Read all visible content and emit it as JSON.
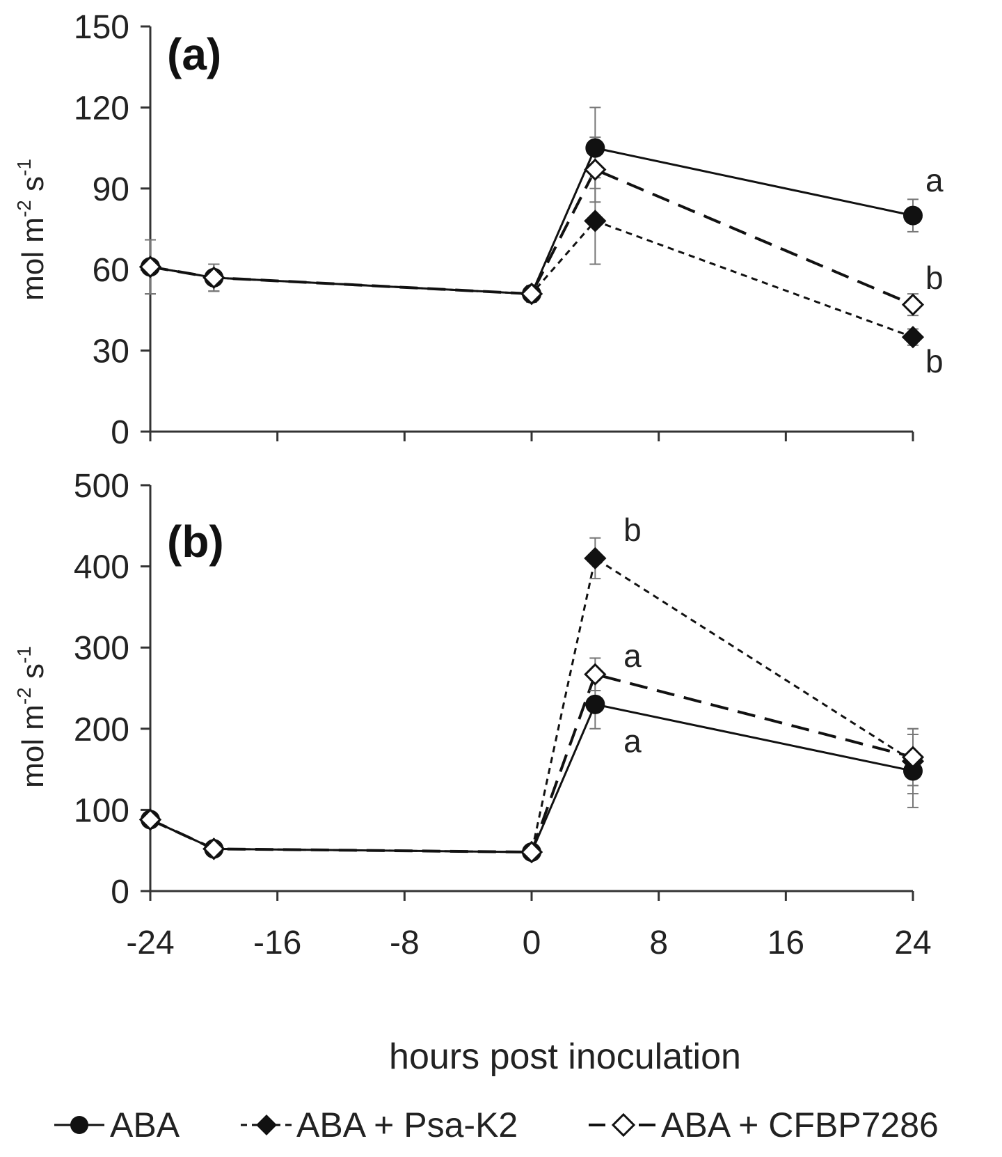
{
  "chart_data": [
    {
      "type": "line",
      "panel_label": "(a)",
      "ylabel": "mol m",
      "ylabel_parts": {
        "base": "mol m",
        "exp1": "-2",
        "mid": " s",
        "exp2": "-1"
      },
      "ylim": [
        0,
        150
      ],
      "yticks": [
        0,
        30,
        60,
        90,
        120,
        150
      ],
      "x": [
        -24,
        -20,
        0,
        4,
        24
      ],
      "series": [
        {
          "name": "ABA",
          "values": [
            61,
            57,
            51,
            105,
            80
          ],
          "err": [
            10,
            5,
            3,
            15,
            6
          ]
        },
        {
          "name": "ABA + Psa-K2",
          "values": [
            61,
            57,
            51,
            78,
            35
          ],
          "err": [
            10,
            5,
            3,
            16,
            3
          ]
        },
        {
          "name": "ABA + CFBP7286",
          "values": [
            61,
            57,
            51,
            97,
            47
          ],
          "err": [
            10,
            5,
            3,
            12,
            4
          ]
        }
      ],
      "annotations": [
        {
          "text": "a",
          "x": 24,
          "y": 93
        },
        {
          "text": "b",
          "x": 24,
          "y": 57
        },
        {
          "text": "b",
          "x": 24,
          "y": 26
        }
      ]
    },
    {
      "type": "line",
      "panel_label": "(b)",
      "ylabel": "mol m",
      "ylabel_parts": {
        "base": "mol m",
        "exp1": "-2",
        "mid": " s",
        "exp2": "-1"
      },
      "ylim": [
        0,
        500
      ],
      "yticks": [
        0,
        100,
        200,
        300,
        400,
        500
      ],
      "x": [
        -24,
        -20,
        0,
        4,
        24
      ],
      "series": [
        {
          "name": "ABA",
          "values": [
            88,
            52,
            48,
            230,
            148
          ],
          "err": [
            8,
            5,
            4,
            30,
            45
          ]
        },
        {
          "name": "ABA + Psa-K2",
          "values": [
            88,
            52,
            48,
            410,
            160
          ],
          "err": [
            8,
            5,
            4,
            25,
            40
          ]
        },
        {
          "name": "ABA + CFBP7286",
          "values": [
            88,
            52,
            48,
            267,
            165
          ],
          "err": [
            8,
            5,
            4,
            20,
            35
          ]
        }
      ],
      "annotations": [
        {
          "text": "b",
          "x": 5,
          "y": 445
        },
        {
          "text": "a",
          "x": 5,
          "y": 290
        },
        {
          "text": "a",
          "x": 5,
          "y": 185
        }
      ]
    }
  ],
  "xaxis": {
    "label": "hours post inoculation",
    "xlim": [
      -24,
      24
    ],
    "ticks": [
      -24,
      -16,
      -8,
      0,
      8,
      16,
      24
    ]
  },
  "legend": {
    "position": "bottom",
    "items": [
      "ABA",
      "ABA + Psa-K2",
      "ABA + CFBP7286"
    ]
  },
  "colors": {
    "line": "#111111",
    "axis": "#333333",
    "text": "#222222",
    "errorbar": "#777777"
  }
}
